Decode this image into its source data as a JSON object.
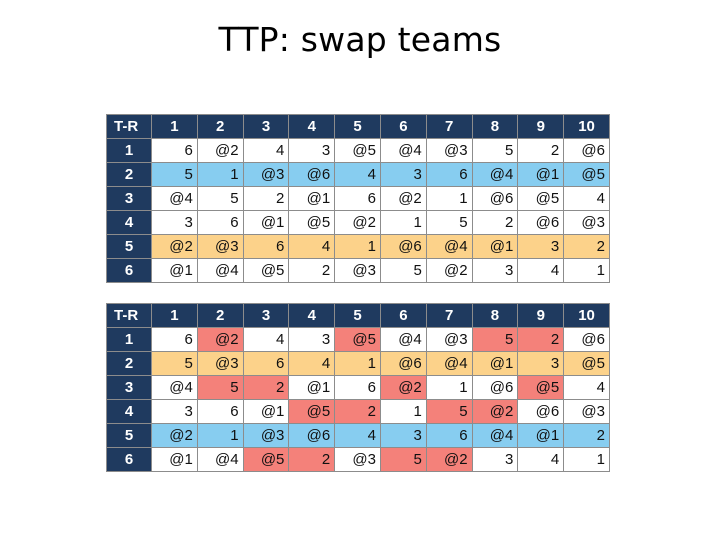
{
  "title": "TTP: swap teams",
  "colors": {
    "header": "#1f3a5f",
    "blue": "#87cdf0",
    "orange": "#fcd28a",
    "red": "#f4817a",
    "white": "#ffffff"
  },
  "tables": [
    {
      "corner": "T-R",
      "columns": [
        "1",
        "2",
        "3",
        "4",
        "5",
        "6",
        "7",
        "8",
        "9",
        "10"
      ],
      "rows": [
        {
          "label": "1",
          "cells": [
            "6",
            "@2",
            "4",
            "3",
            "@5",
            "@4",
            "@3",
            "5",
            "2",
            "@6"
          ],
          "colors": [
            "",
            "",
            "",
            "",
            "",
            "",
            "",
            "",
            "",
            ""
          ]
        },
        {
          "label": "2",
          "cells": [
            "5",
            "1",
            "@3",
            "@6",
            "4",
            "3",
            "6",
            "@4",
            "@1",
            "@5"
          ],
          "colors": [
            "blue",
            "blue",
            "blue",
            "blue",
            "blue",
            "blue",
            "blue",
            "blue",
            "blue",
            "blue"
          ]
        },
        {
          "label": "3",
          "cells": [
            "@4",
            "5",
            "2",
            "@1",
            "6",
            "@2",
            "1",
            "@6",
            "@5",
            "4"
          ],
          "colors": [
            "",
            "",
            "",
            "",
            "",
            "",
            "",
            "",
            "",
            ""
          ]
        },
        {
          "label": "4",
          "cells": [
            "3",
            "6",
            "@1",
            "@5",
            "@2",
            "1",
            "5",
            "2",
            "@6",
            "@3"
          ],
          "colors": [
            "",
            "",
            "",
            "",
            "",
            "",
            "",
            "",
            "",
            ""
          ]
        },
        {
          "label": "5",
          "cells": [
            "@2",
            "@3",
            "6",
            "4",
            "1",
            "@6",
            "@4",
            "@1",
            "3",
            "2"
          ],
          "colors": [
            "orange",
            "orange",
            "orange",
            "orange",
            "orange",
            "orange",
            "orange",
            "orange",
            "orange",
            "orange"
          ]
        },
        {
          "label": "6",
          "cells": [
            "@1",
            "@4",
            "@5",
            "2",
            "@3",
            "5",
            "@2",
            "3",
            "4",
            "1"
          ],
          "colors": [
            "",
            "",
            "",
            "",
            "",
            "",
            "",
            "",
            "",
            ""
          ]
        }
      ]
    },
    {
      "corner": "T-R",
      "columns": [
        "1",
        "2",
        "3",
        "4",
        "5",
        "6",
        "7",
        "8",
        "9",
        "10"
      ],
      "rows": [
        {
          "label": "1",
          "cells": [
            "6",
            "@2",
            "4",
            "3",
            "@5",
            "@4",
            "@3",
            "5",
            "2",
            "@6"
          ],
          "colors": [
            "",
            "red",
            "",
            "",
            "red",
            "",
            "",
            "red",
            "red",
            ""
          ]
        },
        {
          "label": "2",
          "cells": [
            "5",
            "@3",
            "6",
            "4",
            "1",
            "@6",
            "@4",
            "@1",
            "3",
            "@5"
          ],
          "colors": [
            "orange",
            "orange",
            "orange",
            "orange",
            "orange",
            "orange",
            "orange",
            "orange",
            "orange",
            "orange"
          ]
        },
        {
          "label": "3",
          "cells": [
            "@4",
            "5",
            "2",
            "@1",
            "6",
            "@2",
            "1",
            "@6",
            "@5",
            "4"
          ],
          "colors": [
            "",
            "red",
            "red",
            "",
            "",
            "red",
            "",
            "",
            "red",
            ""
          ]
        },
        {
          "label": "4",
          "cells": [
            "3",
            "6",
            "@1",
            "@5",
            "2",
            "1",
            "5",
            "@2",
            "@6",
            "@3"
          ],
          "colors": [
            "",
            "",
            "",
            "red",
            "red",
            "",
            "red",
            "red",
            "",
            ""
          ]
        },
        {
          "label": "5",
          "cells": [
            "@2",
            "1",
            "@3",
            "@6",
            "4",
            "3",
            "6",
            "@4",
            "@1",
            "2"
          ],
          "colors": [
            "blue",
            "blue",
            "blue",
            "blue",
            "blue",
            "blue",
            "blue",
            "blue",
            "blue",
            "blue"
          ]
        },
        {
          "label": "6",
          "cells": [
            "@1",
            "@4",
            "@5",
            "2",
            "@3",
            "5",
            "@2",
            "3",
            "4",
            "1"
          ],
          "colors": [
            "",
            "",
            "red",
            "red",
            "",
            "red",
            "red",
            "",
            "",
            ""
          ]
        }
      ]
    }
  ]
}
